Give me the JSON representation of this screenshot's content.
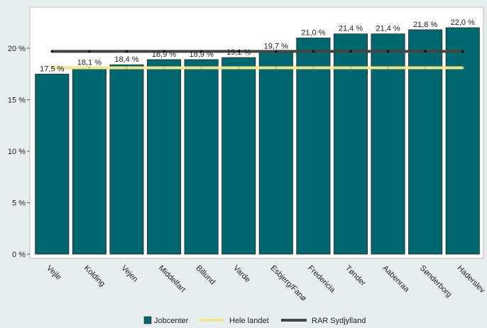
{
  "chart_data": {
    "type": "bar",
    "categories": [
      "Vejle",
      "Kolding",
      "Vejen",
      "Middelfart",
      "Billund",
      "Varde",
      "Esbjerg/Fanø",
      "Fredericia",
      "Tønder",
      "Aabenraa",
      "Sønderborg",
      "Haderslev"
    ],
    "series": [
      {
        "name": "Jobcenter",
        "values": [
          17.5,
          18.1,
          18.4,
          18.9,
          18.9,
          19.1,
          19.7,
          21.0,
          21.4,
          21.4,
          21.8,
          22.0
        ],
        "color": "#00666e"
      },
      {
        "name": "Hele landet",
        "values": [
          18.1,
          18.1,
          18.1,
          18.1,
          18.1,
          18.1,
          18.1,
          18.1,
          18.1,
          18.1,
          18.1,
          18.1
        ],
        "color": "#f0e68c",
        "kind": "line"
      },
      {
        "name": "RAR Sydjylland",
        "values": [
          19.7,
          19.7,
          19.7,
          19.7,
          19.7,
          19.7,
          19.7,
          19.7,
          19.7,
          19.7,
          19.7,
          19.7
        ],
        "color": "#444444",
        "kind": "line"
      }
    ],
    "data_labels": [
      "17,5 %",
      "18,1 %",
      "18,4 %",
      "18,9 %",
      "18,9 %",
      "19,1 %",
      "19,7 %",
      "21,0 %",
      "21,4 %",
      "21,4 %",
      "21,8 %",
      "22,0 %"
    ],
    "yticks": [
      0,
      5,
      10,
      15,
      20
    ],
    "ytick_labels": [
      "0 %",
      "5 %",
      "10 %",
      "15 %",
      "20 %"
    ],
    "ylim": [
      0,
      23.3
    ],
    "grid": false,
    "legend_position": "bottom",
    "title": "",
    "xlabel": "",
    "ylabel": ""
  }
}
